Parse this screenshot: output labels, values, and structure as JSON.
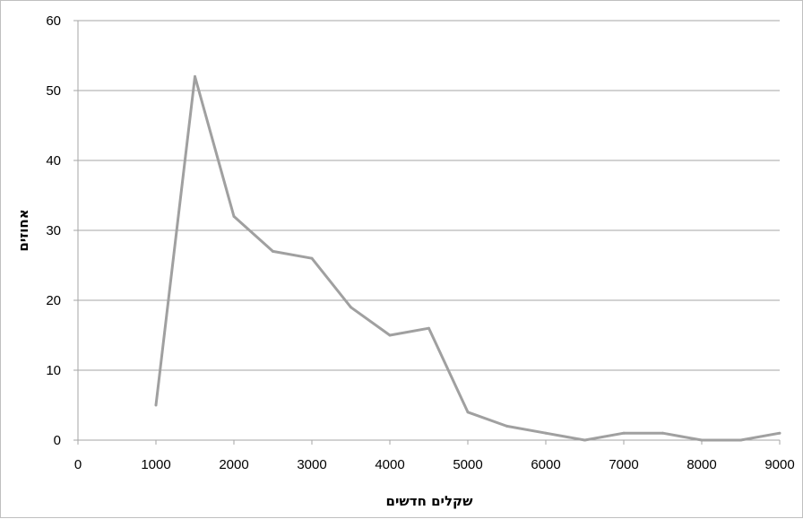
{
  "chart_data": {
    "type": "line",
    "title": "",
    "xlabel": "שקלים חדשים",
    "ylabel": "אחוזים",
    "xlim": [
      0,
      9000
    ],
    "ylim": [
      0,
      60
    ],
    "x_ticks": [
      "0",
      "1000",
      "2000",
      "3000",
      "4000",
      "5000",
      "6000",
      "7000",
      "8000",
      "9000"
    ],
    "y_ticks": [
      "0",
      "10",
      "20",
      "30",
      "40",
      "50",
      "60"
    ],
    "grid": "horizontal",
    "legend": "none",
    "series_color": "#a0a0a0",
    "grid_color": "#a6a6a6",
    "series": [
      {
        "x": [
          1000,
          1500,
          2000,
          2500,
          3000,
          3500,
          4000,
          4500,
          5000,
          5500,
          6000,
          6500,
          7000,
          7500,
          8000,
          8500,
          9000
        ],
        "y": [
          5,
          52,
          32,
          27,
          26,
          19,
          15,
          16,
          4,
          2,
          1,
          0,
          1,
          1,
          0,
          0,
          1
        ]
      }
    ]
  }
}
